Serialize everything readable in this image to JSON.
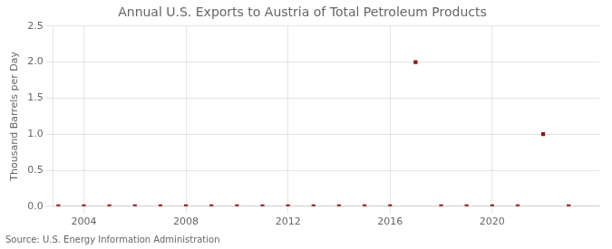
{
  "chart_data": {
    "type": "scatter",
    "title": "Annual U.S. Exports to Austria of Total Petroleum Products",
    "y_label": "Thousand Barrels per Day",
    "annotations": [
      "Source: U.S. Energy Information Administration"
    ],
    "x": [
      2003,
      2004,
      2005,
      2006,
      2007,
      2008,
      2009,
      2010,
      2011,
      2012,
      2013,
      2014,
      2015,
      2016,
      2017,
      2018,
      2019,
      2020,
      2021,
      2022,
      2023
    ],
    "values": [
      0.0,
      0.0,
      0.0,
      0.0,
      0.0,
      0.0,
      0.0,
      0.0,
      0.0,
      0.0,
      0.0,
      0.0,
      0.0,
      0.0,
      2.0,
      0.0,
      0.0,
      0.0,
      0.0,
      1.0,
      0.0
    ],
    "color": "#8b1a1a",
    "marker": "square",
    "xlim": [
      2002.8,
      2024.2
    ],
    "ylim": [
      0.0,
      2.5
    ],
    "xticks": [
      2004,
      2008,
      2012,
      2016,
      2020
    ],
    "yticks": [
      {
        "value": 0.0,
        "label": "0.0"
      },
      0.5,
      {
        "value": 1.0,
        "label": "1.0"
      },
      1.5,
      {
        "value": 2.0,
        "label": "2.0"
      },
      2.5
    ],
    "grid": true
  }
}
